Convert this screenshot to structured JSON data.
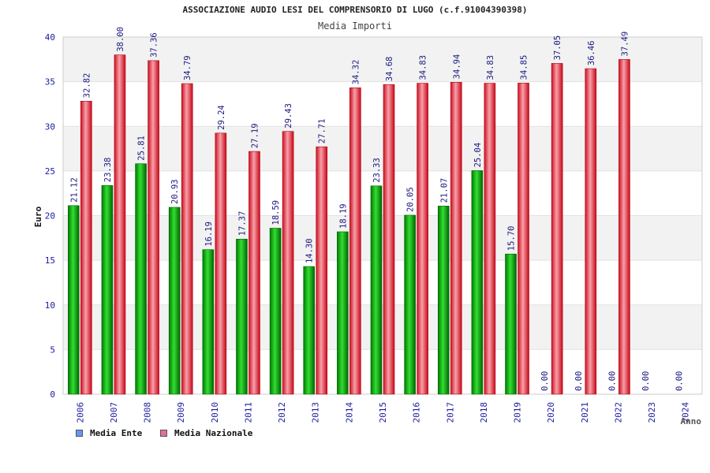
{
  "chart_data": {
    "type": "bar",
    "title": "ASSOCIAZIONE AUDIO LESI DEL COMPRENSORIO DI LUGO (c.f.91004390398)",
    "subtitle": "Media Importi",
    "xlabel": "Anno",
    "ylabel": "Euro",
    "ylim": [
      0,
      40
    ],
    "yticks": [
      0,
      5,
      10,
      15,
      20,
      25,
      30,
      35,
      40
    ],
    "grid": true,
    "legend_position": "bottom-left",
    "categories": [
      "2006",
      "2007",
      "2008",
      "2009",
      "2010",
      "2011",
      "2012",
      "2013",
      "2014",
      "2015",
      "2016",
      "2017",
      "2018",
      "2019",
      "2020",
      "2021",
      "2022",
      "2023",
      "2024"
    ],
    "series": [
      {
        "name": "Media Ente",
        "color": "#00aa00",
        "legend_color": "#6699ee",
        "values": [
          21.12,
          23.38,
          25.81,
          20.93,
          16.19,
          17.37,
          18.59,
          14.3,
          18.19,
          23.33,
          20.05,
          21.07,
          25.04,
          15.7,
          0,
          0,
          0,
          0,
          0
        ],
        "labels": [
          "21.12",
          "23.38",
          "25.81",
          "20.93",
          "16.19",
          "17.37",
          "18.59",
          "14.30",
          "18.19",
          "23.33",
          "20.05",
          "21.07",
          "25.04",
          "15.70",
          "0.00",
          "0.00",
          "0.00",
          "0.00",
          "0.00"
        ]
      },
      {
        "name": "Media Nazionale",
        "color": "#e8303a",
        "legend_color": "#e070a0",
        "values": [
          32.82,
          38.0,
          37.36,
          34.79,
          29.24,
          27.19,
          29.43,
          27.71,
          34.32,
          34.68,
          34.83,
          34.94,
          34.83,
          34.85,
          37.05,
          36.46,
          37.49,
          null,
          null
        ],
        "labels": [
          "32.82",
          "38.00",
          "37.36",
          "34.79",
          "29.24",
          "27.19",
          "29.43",
          "27.71",
          "34.32",
          "34.68",
          "34.83",
          "34.94",
          "34.83",
          "34.85",
          "37.05",
          "36.46",
          "37.49",
          null,
          null
        ]
      }
    ]
  }
}
